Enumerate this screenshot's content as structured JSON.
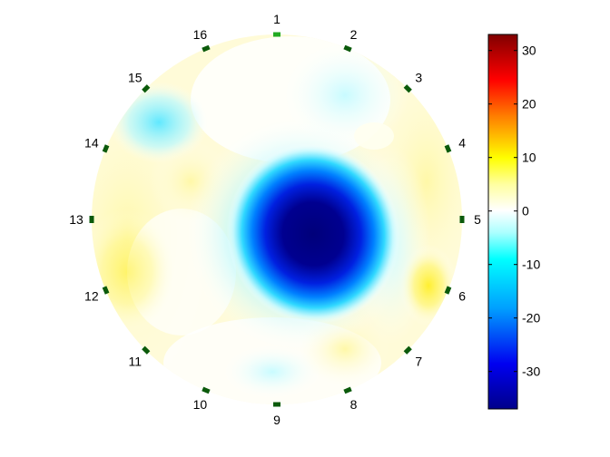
{
  "chart_data": {
    "type": "heatmap",
    "title": "",
    "electrodes": [
      "1",
      "2",
      "3",
      "4",
      "5",
      "6",
      "7",
      "8",
      "9",
      "10",
      "11",
      "12",
      "13",
      "14",
      "15",
      "16"
    ],
    "colorbar": {
      "ticks": [
        "30",
        "20",
        "10",
        "0",
        "-10",
        "-20",
        "-30"
      ],
      "tick_values": [
        30,
        20,
        10,
        0,
        -10,
        -20,
        -30
      ],
      "range": [
        -37,
        33
      ],
      "colormap": "jet-white"
    },
    "anomalies": [
      {
        "region": "center",
        "value": -37
      },
      {
        "region": "center-left",
        "value": -12
      },
      {
        "region": "top-right near electrode 2",
        "value": -4
      },
      {
        "region": "near electrode 15",
        "value": -10
      },
      {
        "region": "near electrode 6",
        "value": 9
      },
      {
        "region": "left near electrode 12",
        "value": 6
      },
      {
        "region": "bottom near electrode 9",
        "value": -6
      }
    ],
    "colors": {
      "electrode": "#0b5a0b",
      "electrode_top": "#22aa22",
      "background": "#ffffff"
    }
  }
}
